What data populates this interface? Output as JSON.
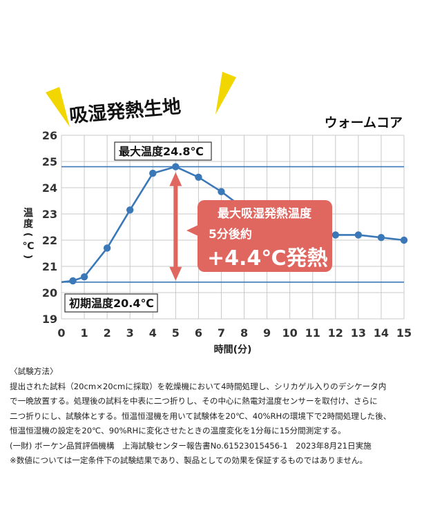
{
  "chart_data": {
    "type": "line",
    "title": "吸湿発熱生地",
    "brand": "ウォームコア",
    "xlabel": "時間(分)",
    "ylabel": "温度(℃)",
    "x": [
      0.5,
      1,
      2,
      3,
      4,
      5,
      6,
      7,
      8,
      9,
      10,
      11,
      12,
      13,
      14,
      15
    ],
    "values": [
      20.45,
      20.6,
      21.7,
      23.15,
      24.55,
      24.8,
      24.4,
      23.85,
      23.2,
      22.8,
      22.5,
      22.3,
      22.2,
      22.2,
      22.1,
      22.0
    ],
    "xlim": [
      0,
      15
    ],
    "ylim": [
      19,
      26
    ],
    "xticks": [
      "0",
      "1",
      "2",
      "3",
      "4",
      "5",
      "6",
      "7",
      "8",
      "9",
      "10",
      "11",
      "12",
      "13",
      "14",
      "15"
    ],
    "yticks": [
      "19",
      "20",
      "21",
      "22",
      "23",
      "24",
      "25",
      "26"
    ],
    "grid": true,
    "reference_lines": [
      {
        "value": 24.8,
        "label": "最大温度24.8℃"
      },
      {
        "value": 20.4,
        "label": "初期温度20.4℃"
      }
    ],
    "callout": {
      "line1": "最大吸湿発熱温度",
      "line2": "5分後約",
      "line3": "+4.4℃発熱"
    }
  },
  "colors": {
    "series": "#3a78b8",
    "reference": "#3a78b8",
    "grid": "#c8c8c8",
    "callout": "#e06660",
    "arrow": "#e06660",
    "burst": "#f2d600"
  },
  "notes": {
    "heading": "〈試験方法〉",
    "lines": [
      "提出された試料（20cm×20cmに採取）を乾燥機において4時間処理し、シリカゲル入りのデシケータ内",
      "で一晩放置する。処理後の試料を中表に二つ折りし、その中心に熱電対温度センサーを取付け、さらに",
      "二つ折りにし、試験体とする。恒温恒湿機を用いて試験体を20℃、40%RHの環境下で2時間処理した後、",
      "恒温恒湿機の設定を20℃、90%RHに変化させたときの温度変化を1分毎に15分間測定する。",
      "(一財) ボーケン品質評価機構　上海試験センター報告書No.61523015456-1　2023年8月21日実施",
      "※数値については一定条件下の試験結果であり、製品としての効果を保証するものではありません。"
    ]
  }
}
